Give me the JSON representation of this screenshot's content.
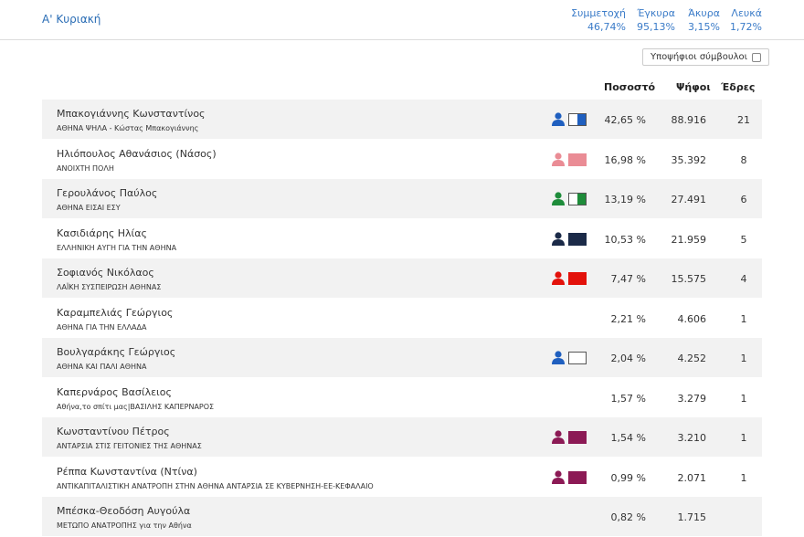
{
  "header": {
    "title": "Α' Κυριακή",
    "stats": [
      {
        "label": "Συμμετοχή",
        "value": "46,74%"
      },
      {
        "label": "Έγκυρα",
        "value": "95,13%"
      },
      {
        "label": "Άκυρα",
        "value": "3,15%"
      },
      {
        "label": "Λευκά",
        "value": "1,72%"
      }
    ]
  },
  "toggle": {
    "label": "Υποψήφιοι σύμβουλοι"
  },
  "table": {
    "columns": [
      "Ποσοστό",
      "Ψήφοι",
      "Έδρες"
    ],
    "rows": [
      {
        "name": "Μπακογιάννης Κωνσταντίνος",
        "party": "ΑΘΗΝΑ ΨΗΛΑ - Κώστας Μπακογιάννης",
        "percent": "42,65 %",
        "votes": "88.916",
        "seats": "21",
        "icon": {
          "color": "#1f5fbf",
          "flag": [
            "#ffffff",
            "#1f5fbf"
          ]
        }
      },
      {
        "name": "Ηλιόπουλος Αθανάσιος (Νάσος)",
        "party": "ΑΝΟΙΧΤΗ ΠΟΛΗ",
        "percent": "16,98 %",
        "votes": "35.392",
        "seats": "8",
        "icon": {
          "color": "#ea8c95",
          "flag": [
            "#ea8c95",
            "#ea8c95"
          ]
        }
      },
      {
        "name": "Γερουλάνος Παύλος",
        "party": "ΑΘΗΝΑ ΕΙΣΑΙ ΕΣΥ",
        "percent": "13,19 %",
        "votes": "27.491",
        "seats": "6",
        "icon": {
          "color": "#1e8c3a",
          "flag": [
            "#ffffff",
            "#1e8c3a"
          ]
        }
      },
      {
        "name": "Κασιδιάρης Ηλίας",
        "party": "ΕΛΛΗΝΙΚΗ ΑΥΓΗ ΓΙΑ ΤΗΝ ΑΘΗΝΑ",
        "percent": "10,53 %",
        "votes": "21.959",
        "seats": "5",
        "icon": {
          "color": "#1b2a48",
          "flag": [
            "#1b2a48",
            "#1b2a48"
          ]
        }
      },
      {
        "name": "Σοφιανός Νικόλαος",
        "party": "ΛΑΪΚΗ ΣΥΣΠΕΙΡΩΣΗ ΑΘΗΝΑΣ",
        "percent": "7,47 %",
        "votes": "15.575",
        "seats": "4",
        "icon": {
          "color": "#e3120b",
          "flag": [
            "#e3120b",
            "#e3120b"
          ]
        }
      },
      {
        "name": "Καραμπελιάς Γεώργιος",
        "party": "ΑΘΗΝΑ ΓΙΑ ΤΗΝ ΕΛΛΑΔΑ",
        "percent": "2,21 %",
        "votes": "4.606",
        "seats": "1",
        "icon": null
      },
      {
        "name": "Βουλγαράκης Γεώργιος",
        "party": "ΑΘΗΝΑ ΚΑΙ ΠΑΛΙ ΑΘΗΝΑ",
        "percent": "2,04 %",
        "votes": "4.252",
        "seats": "1",
        "icon": {
          "color": "#1f5fbf",
          "flag": [
            "#ffffff",
            "#ffffff"
          ]
        }
      },
      {
        "name": "Καπερνάρος Βασίλειος",
        "party": "Αθήνα,το σπίτι μας|ΒΑΣΙΛΗΣ ΚΑΠΕΡΝΑΡΟΣ",
        "percent": "1,57 %",
        "votes": "3.279",
        "seats": "1",
        "icon": null
      },
      {
        "name": "Κωνσταντίνου Πέτρος",
        "party": "ΑΝΤΑΡΣΙΑ ΣΤΙΣ ΓΕΙΤΟΝΙΕΣ ΤΗΣ ΑΘΗΝΑΣ",
        "percent": "1,54 %",
        "votes": "3.210",
        "seats": "1",
        "icon": {
          "color": "#8c1a55",
          "flag": [
            "#8c1a55",
            "#8c1a55"
          ]
        }
      },
      {
        "name": "Ρέππα Κωνσταντίνα (Ντίνα)",
        "party": "ΑΝΤΙΚΑΠΙΤΑΛΙΣΤΙΚΗ ΑΝΑΤΡΟΠΗ ΣΤΗΝ ΑΘΗΝΑ ΑΝΤΑΡΣΙΑ ΣΕ ΚΥΒΕΡΝΗΣΗ-ΕΕ-ΚΕΦΑΛΑΙΟ",
        "percent": "0,99 %",
        "votes": "2.071",
        "seats": "1",
        "icon": {
          "color": "#8c1a55",
          "flag": [
            "#8c1a55",
            "#8c1a55"
          ]
        }
      },
      {
        "name": "Μπέσκα-Θεοδόση Αυγούλα",
        "party": "ΜΕΤΩΠΟ ΑΝΑΤΡΟΠΗΣ για την Αθήνα",
        "percent": "0,82 %",
        "votes": "1.715",
        "seats": null,
        "icon": null
      }
    ]
  }
}
